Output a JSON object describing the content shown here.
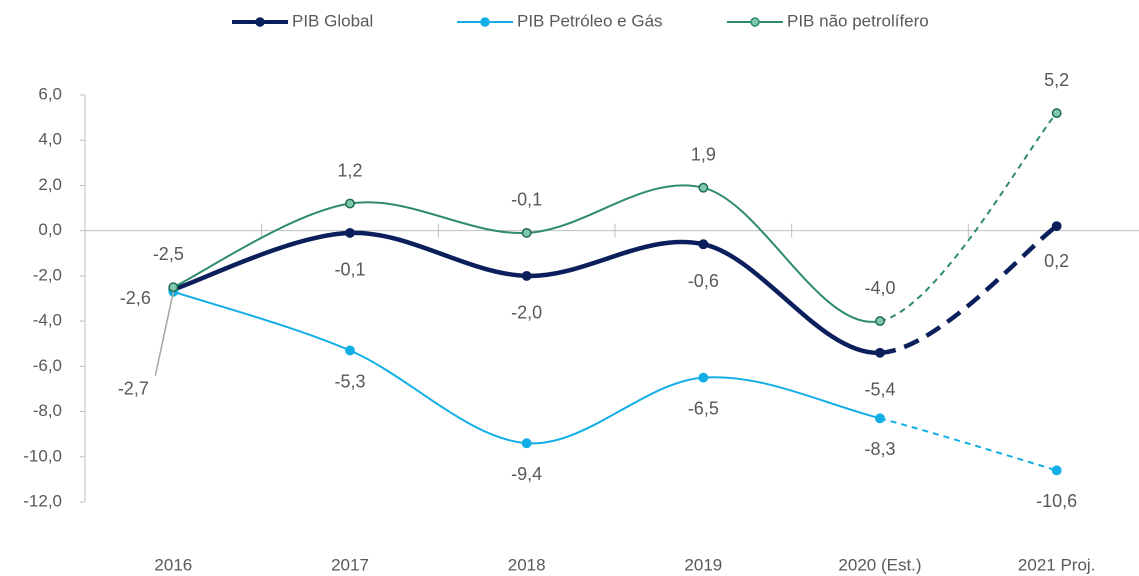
{
  "chart_data": {
    "type": "line",
    "categories": [
      "2016",
      "2017",
      "2018",
      "2019",
      "2020 (Est.)",
      "2021 Proj."
    ],
    "series": [
      {
        "name": "PIB  Global",
        "color": "#0b1f5c",
        "values": [
          -2.6,
          -0.1,
          -2.0,
          -0.6,
          -5.4,
          0.2
        ],
        "value_labels": [
          "-2,6",
          "-0,1",
          "-2,0",
          "-0,6",
          "-5,4",
          "0,2"
        ]
      },
      {
        "name": "PIB Petróleo e Gás",
        "color": "#12aee6",
        "values": [
          -2.7,
          -5.3,
          -9.4,
          -6.5,
          -8.3,
          -10.6
        ],
        "value_labels": [
          "-2,7",
          "-5,3",
          "-9,4",
          "-6,5",
          "-8,3",
          "-10,6"
        ]
      },
      {
        "name": "PIB não petrolífero",
        "color": "#2e8b6e",
        "values": [
          -2.5,
          1.2,
          -0.1,
          1.9,
          -4.0,
          5.2
        ],
        "value_labels": [
          "-2,5",
          "1,2",
          "-0,1",
          "1,9",
          "-4,0",
          "5,2"
        ]
      }
    ],
    "ylim": [
      -12,
      6
    ],
    "yticks": [
      {
        "value": 6,
        "label": "6,0"
      },
      {
        "value": 4,
        "label": "4,0"
      },
      {
        "value": 2,
        "label": "2,0"
      },
      {
        "value": 0,
        "label": "0,0"
      },
      {
        "value": -2,
        "label": "-2,0"
      },
      {
        "value": -4,
        "label": "-4,0"
      },
      {
        "value": -6,
        "label": "-6,0"
      },
      {
        "value": -8,
        "label": "-8,0"
      },
      {
        "value": -10,
        "label": "-10,0"
      },
      {
        "value": -12,
        "label": "-12,0"
      }
    ],
    "dashed_from": 4,
    "legend": "top"
  }
}
